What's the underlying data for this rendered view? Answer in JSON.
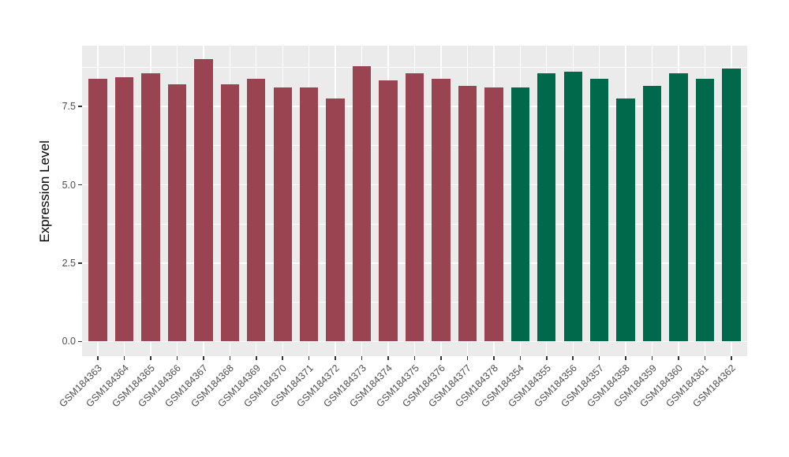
{
  "chart_data": {
    "type": "bar",
    "title": "",
    "xlabel": "",
    "ylabel": "Expression Level",
    "palette": {
      "maroon": "#9A4452",
      "green": "#00684B"
    },
    "bars": [
      {
        "label": "GSM184363",
        "value": 8.38,
        "group": "maroon"
      },
      {
        "label": "GSM184364",
        "value": 8.42,
        "group": "maroon"
      },
      {
        "label": "GSM184365",
        "value": 8.56,
        "group": "maroon"
      },
      {
        "label": "GSM184366",
        "value": 8.2,
        "group": "maroon"
      },
      {
        "label": "GSM184367",
        "value": 9.02,
        "group": "maroon"
      },
      {
        "label": "GSM184368",
        "value": 8.2,
        "group": "maroon"
      },
      {
        "label": "GSM184369",
        "value": 8.39,
        "group": "maroon"
      },
      {
        "label": "GSM184370",
        "value": 8.1,
        "group": "maroon"
      },
      {
        "label": "GSM184371",
        "value": 8.1,
        "group": "maroon"
      },
      {
        "label": "GSM184372",
        "value": 7.74,
        "group": "maroon"
      },
      {
        "label": "GSM184373",
        "value": 8.77,
        "group": "maroon"
      },
      {
        "label": "GSM184374",
        "value": 8.32,
        "group": "maroon"
      },
      {
        "label": "GSM184375",
        "value": 8.56,
        "group": "maroon"
      },
      {
        "label": "GSM184376",
        "value": 8.38,
        "group": "maroon"
      },
      {
        "label": "GSM184377",
        "value": 8.15,
        "group": "maroon"
      },
      {
        "label": "GSM184378",
        "value": 8.1,
        "group": "maroon"
      },
      {
        "label": "GSM184354",
        "value": 8.1,
        "group": "green"
      },
      {
        "label": "GSM184355",
        "value": 8.56,
        "group": "green"
      },
      {
        "label": "GSM184356",
        "value": 8.61,
        "group": "green"
      },
      {
        "label": "GSM184357",
        "value": 8.38,
        "group": "green"
      },
      {
        "label": "GSM184358",
        "value": 7.74,
        "group": "green"
      },
      {
        "label": "GSM184359",
        "value": 8.15,
        "group": "green"
      },
      {
        "label": "GSM184360",
        "value": 8.55,
        "group": "green"
      },
      {
        "label": "GSM184361",
        "value": 8.38,
        "group": "green"
      },
      {
        "label": "GSM184362",
        "value": 8.71,
        "group": "green"
      }
    ],
    "layout": {
      "ylim": [
        -0.465,
        9.435
      ],
      "y_major_ticks": [
        0,
        2.5,
        5,
        7.5
      ],
      "y_tick_labels": [
        "0.0",
        "2.5",
        "5.0",
        "7.5"
      ],
      "y_minor_ticks": [
        1.25,
        3.75,
        6.25,
        8.75
      ],
      "panel_bg": "#EBEBEB",
      "grid_color": "#FFFFFF",
      "legend": "none",
      "x_tick_rotation": 45,
      "bar_width_frac": 0.7
    }
  }
}
